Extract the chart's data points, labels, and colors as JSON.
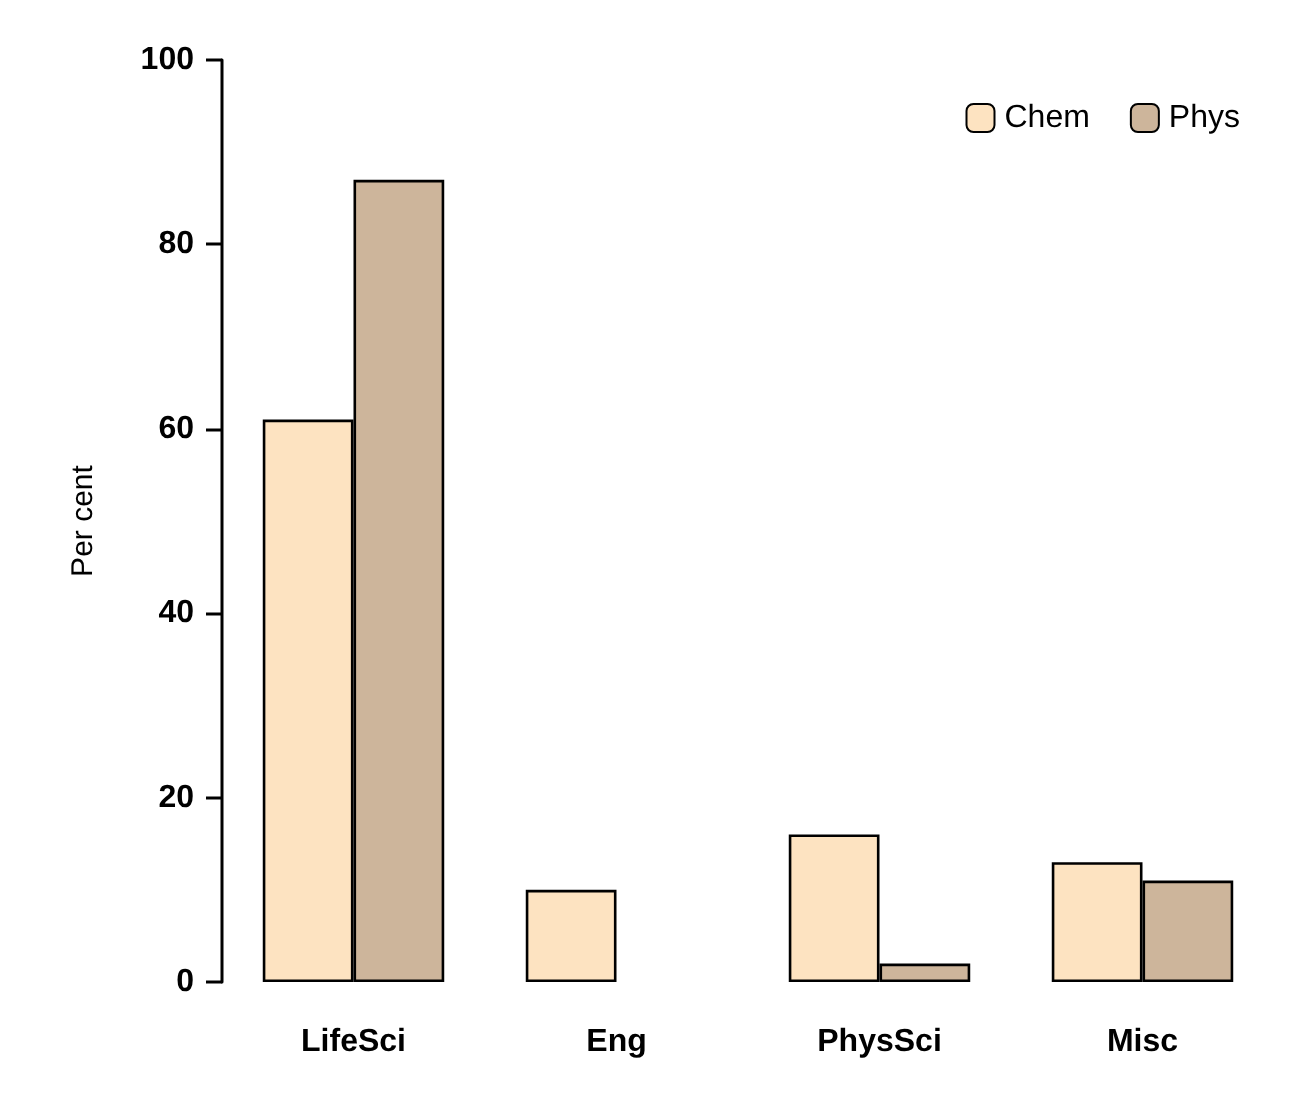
{
  "chart_data": {
    "type": "bar",
    "ylabel": "Per cent",
    "categories": [
      "LifeSci",
      "Eng",
      "PhysSci",
      "Misc"
    ],
    "series": [
      {
        "name": "Chem",
        "color": "#fde3c1",
        "values": [
          61,
          10,
          16,
          13
        ]
      },
      {
        "name": "Phys",
        "color": "#cdb59b",
        "values": [
          87,
          0,
          2,
          11
        ]
      }
    ],
    "ylim": [
      0,
      100
    ],
    "yticks": [
      0,
      20,
      40,
      60,
      80,
      100
    ],
    "grid": false,
    "legend": "top right"
  }
}
